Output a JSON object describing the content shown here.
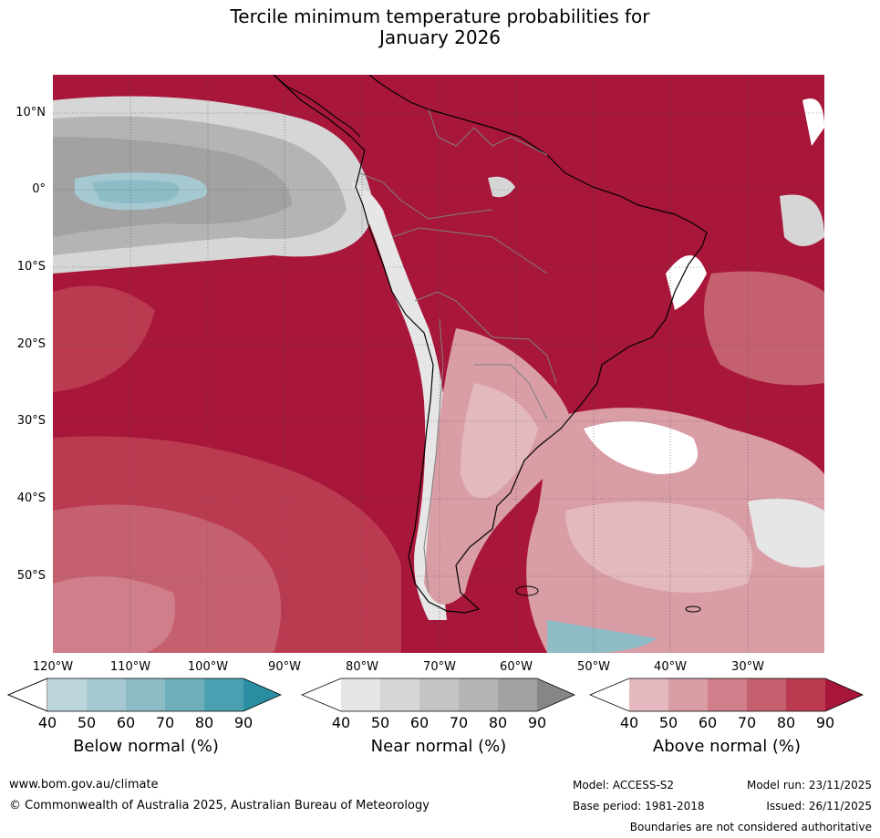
{
  "title": {
    "line1": "Tercile minimum temperature probabilities for",
    "line2": "January 2026"
  },
  "map": {
    "lat_labels": [
      "10°N",
      "0°",
      "10°S",
      "20°S",
      "30°S",
      "40°S",
      "50°S"
    ],
    "lon_labels": [
      "120°W",
      "110°W",
      "100°W",
      "90°W",
      "80°W",
      "70°W",
      "60°W",
      "50°W",
      "40°W",
      "30°W"
    ]
  },
  "legend": {
    "below": {
      "label": "Below normal (%)",
      "ticks": [
        "40",
        "50",
        "60",
        "70",
        "80",
        "90"
      ],
      "colors": [
        "#ffffff",
        "#bdd6dc",
        "#a6c9d1",
        "#8dbcc6",
        "#6fafbc",
        "#4a9fb0",
        "#2a8ea3"
      ]
    },
    "near": {
      "label": "Near normal (%)",
      "ticks": [
        "40",
        "50",
        "60",
        "70",
        "80",
        "90"
      ],
      "colors": [
        "#ffffff",
        "#e6e6e6",
        "#d6d6d6",
        "#c4c4c4",
        "#b4b4b4",
        "#a2a2a2",
        "#868686"
      ]
    },
    "above": {
      "label": "Above normal (%)",
      "ticks": [
        "40",
        "50",
        "60",
        "70",
        "80",
        "90"
      ],
      "colors": [
        "#ffffff",
        "#e3b9bf",
        "#d99da5",
        "#cf7e8a",
        "#c5606f",
        "#ba3a50",
        "#a8163a"
      ]
    }
  },
  "footer": {
    "website": "www.bom.gov.au/climate",
    "copyright": "© Commonwealth of Australia 2025, Australian Bureau of Meteorology",
    "model": "Model: ACCESS-S2",
    "base_period": "Base period: 1981-2018",
    "model_run": "Model run: 23/11/2025",
    "issued": "Issued: 26/11/2025",
    "disclaimer": "Boundaries are not considered authoritative"
  }
}
